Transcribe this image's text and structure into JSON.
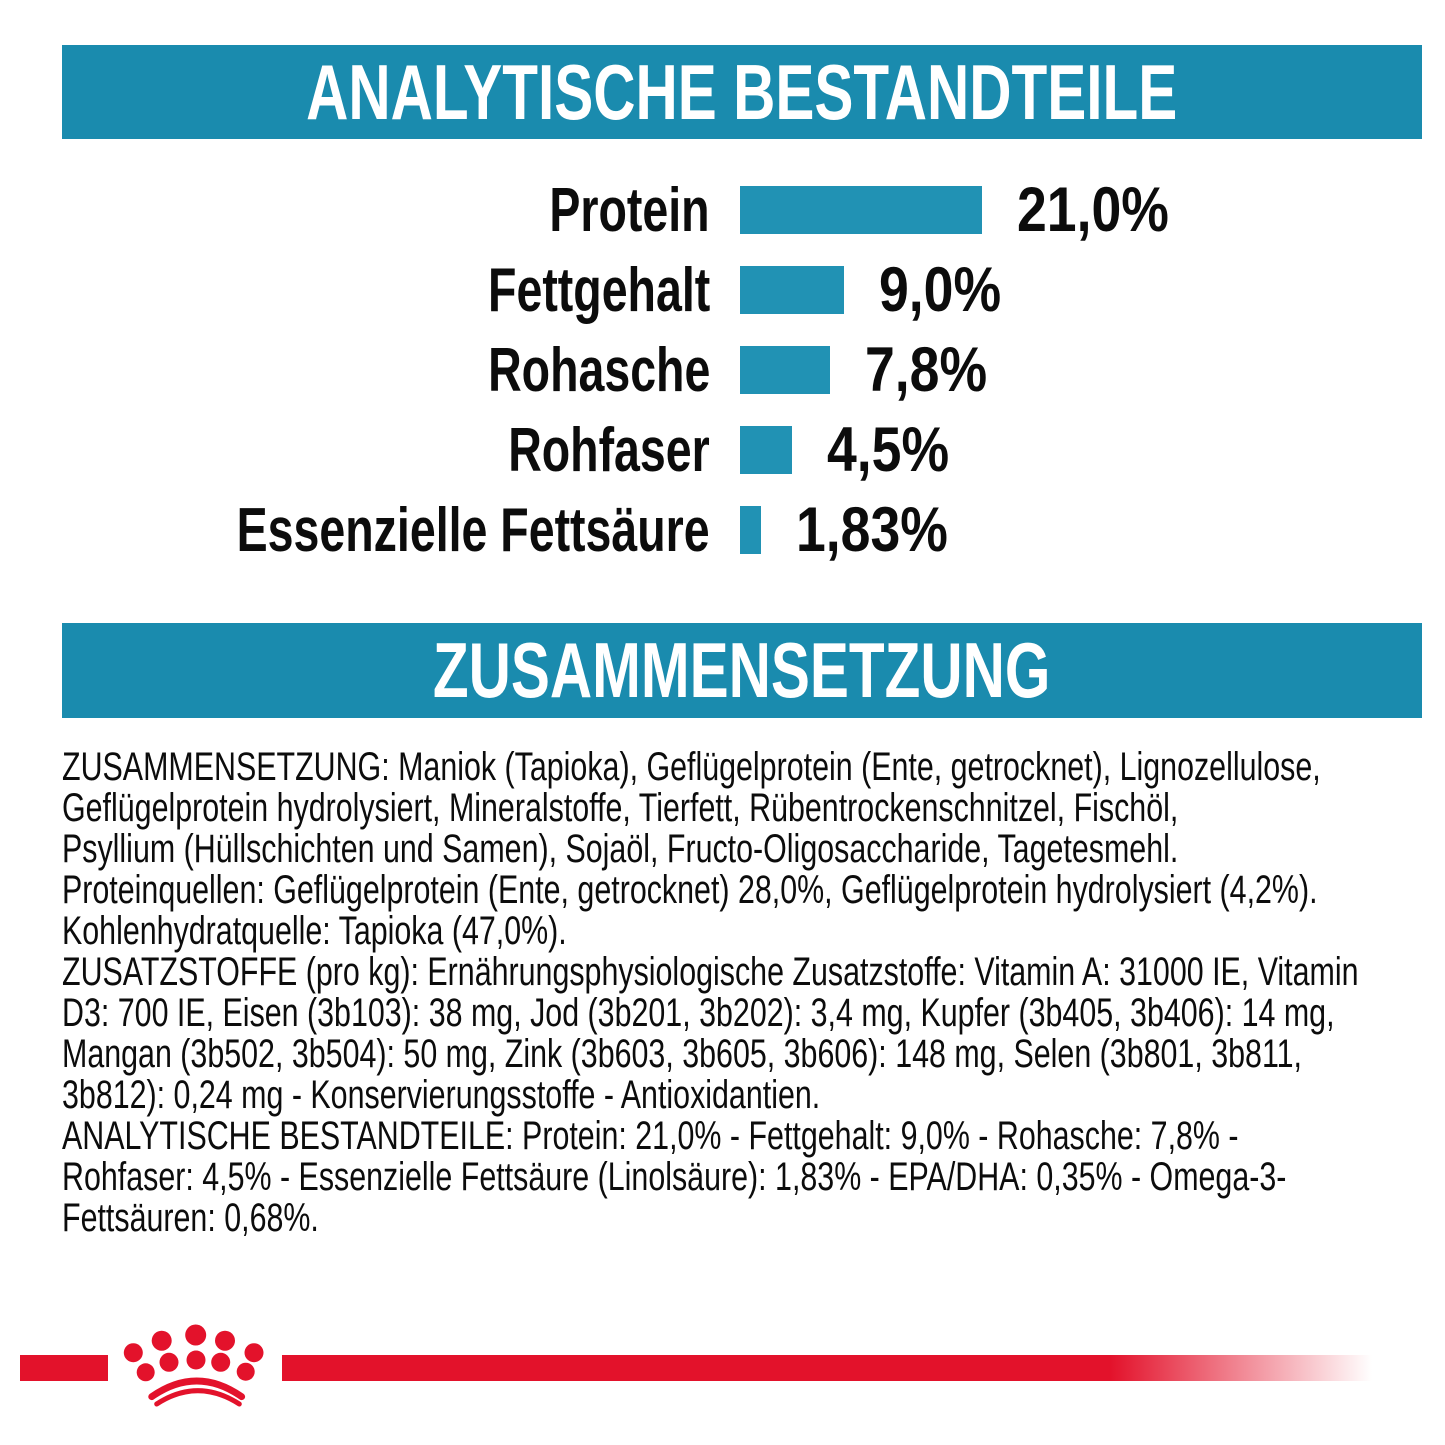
{
  "colors": {
    "teal_banner": "#1A8BAE",
    "bar_teal": "#2192B4",
    "brand_red": "#E3122B",
    "text": "#0C0C0C",
    "banner_text": "#FFFFFF",
    "background": "#FFFFFF"
  },
  "sections": {
    "analytical": {
      "title": "ANALYTISCHE BESTANDTEILE"
    },
    "composition": {
      "title": "ZUSAMMENSETZUNG"
    }
  },
  "chart_data": {
    "type": "bar",
    "orientation": "horizontal",
    "title": "ANALYTISCHE BESTANDTEILE",
    "categories": [
      "Protein",
      "Fettgehalt",
      "Rohasche",
      "Rohfaser",
      "Essenzielle Fettsäure"
    ],
    "values": [
      21.0,
      9.0,
      7.8,
      4.5,
      1.83
    ],
    "value_labels": [
      "21,0%",
      "9,0%",
      "7,8%",
      "4,5%",
      "1,83%"
    ],
    "unit": "%",
    "xlim": [
      0,
      21
    ],
    "grid": false,
    "legend": false,
    "bar_color": "#2192B4",
    "label_position": "left",
    "value_position": "right-of-bar"
  },
  "composition_text": {
    "lines": [
      "ZUSAMMENSETZUNG: Maniok (Tapioka), Geflügelprotein (Ente, getrocknet), Lignozellulose,",
      "Geflügelprotein hydrolysiert, Mineralstoffe, Tierfett, Rübentrockenschnitzel, Fischöl,",
      "Psyllium (Hüllschichten und Samen), Sojaöl, Fructo-Oligosaccharide, Tagetesmehl.",
      "Proteinquellen: Geflügelprotein (Ente, getrocknet) 28,0%, Geflügelprotein hydrolysiert (4,2%).",
      "Kohlenhydratquelle: Tapioka (47,0%).",
      "ZUSATZSTOFFE (pro kg): Ernährungsphysiologische Zusatzstoffe: Vitamin A: 31000 IE, Vitamin",
      "D3: 700 IE, Eisen (3b103): 38 mg, Jod (3b201, 3b202): 3,4 mg, Kupfer (3b405, 3b406): 14 mg,",
      "Mangan (3b502, 3b504): 50 mg, Zink (3b603, 3b605, 3b606): 148 mg, Selen (3b801, 3b811,",
      "3b812): 0,24 mg - Konservierungsstoffe - Antioxidantien.",
      "ANALYTISCHE BESTANDTEILE: Protein: 21,0% - Fettgehalt: 9,0% - Rohasche: 7,8% -",
      "Rohfaser: 4,5% - Essenzielle Fettsäure (Linolsäure): 1,83% - EPA/DHA: 0,35% - Omega-3-",
      "Fettsäuren: 0,68%."
    ]
  },
  "footer": {
    "logo_icon": "royal-canin-crown-icon"
  }
}
